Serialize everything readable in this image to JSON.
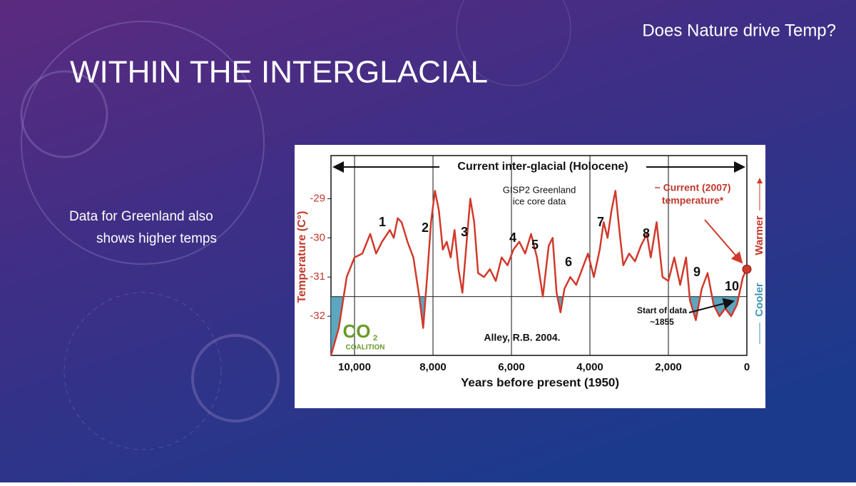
{
  "slide": {
    "header": "Does Nature drive Temp?",
    "title": "WITHIN THE INTERGLACIAL",
    "body": [
      "Data for Greenland also",
      "shows higher temps"
    ]
  },
  "chart": {
    "type": "line",
    "title": "Current inter-glacial (Holocene)",
    "x_label": "Years before present (1950)",
    "y_label": "Temperature (C°)",
    "x": [
      10600,
      10400,
      10200,
      10000,
      9800,
      9600,
      9450,
      9300,
      9100,
      9000,
      8900,
      8800,
      8650,
      8500,
      8350,
      8250,
      8150,
      8050,
      7950,
      7850,
      7750,
      7650,
      7550,
      7450,
      7350,
      7250,
      7150,
      7050,
      6950,
      6850,
      6700,
      6550,
      6400,
      6250,
      6100,
      5950,
      5800,
      5650,
      5500,
      5350,
      5200,
      5050,
      4950,
      4850,
      4750,
      4650,
      4500,
      4350,
      4200,
      4050,
      3900,
      3750,
      3650,
      3550,
      3450,
      3350,
      3250,
      3150,
      3000,
      2850,
      2700,
      2550,
      2450,
      2300,
      2150,
      2000,
      1850,
      1700,
      1550,
      1450,
      1300,
      1150,
      1000,
      850,
      700,
      550,
      400,
      250,
      100,
      0
    ],
    "values": [
      -33.0,
      -32.3,
      -31.0,
      -30.5,
      -30.4,
      -29.9,
      -30.4,
      -30.1,
      -29.8,
      -30.0,
      -29.5,
      -29.6,
      -30.1,
      -30.5,
      -31.5,
      -32.3,
      -31.0,
      -29.6,
      -28.8,
      -29.3,
      -30.3,
      -30.1,
      -30.5,
      -29.8,
      -30.8,
      -31.4,
      -30.2,
      -29.0,
      -29.6,
      -30.9,
      -31.0,
      -30.8,
      -31.1,
      -30.5,
      -30.7,
      -30.3,
      -30.1,
      -30.4,
      -29.9,
      -30.5,
      -31.5,
      -30.2,
      -30.0,
      -31.4,
      -31.9,
      -31.3,
      -31.0,
      -31.2,
      -30.8,
      -30.4,
      -31.0,
      -30.3,
      -29.6,
      -30.0,
      -29.3,
      -28.8,
      -29.8,
      -30.7,
      -30.4,
      -30.6,
      -30.2,
      -29.9,
      -30.5,
      -29.6,
      -31.0,
      -31.1,
      -30.5,
      -31.2,
      -30.5,
      -31.6,
      -32.1,
      -31.3,
      -30.9,
      -31.7,
      -32.0,
      -31.8,
      -32.0,
      -31.7,
      -31.0,
      -30.8
    ],
    "color": "#d03a2c",
    "xlim": [
      10600,
      0
    ],
    "ylim": [
      -33,
      -27.9
    ],
    "xticks": [
      {
        "value": 10000,
        "label": "10,000"
      },
      {
        "value": 8000,
        "label": "8,000"
      },
      {
        "value": 6000,
        "label": "6,000"
      },
      {
        "value": 4000,
        "label": "4,000"
      },
      {
        "value": 2000,
        "label": "2,000"
      },
      0
    ],
    "yticks": [
      -29,
      -30,
      -31,
      -32
    ],
    "grid": true,
    "reference": -31.5,
    "reference_color": "#3f96b4",
    "period_labels": [
      "1",
      "2",
      "3",
      "4",
      "5",
      "6",
      "7",
      "8",
      "9",
      "10"
    ],
    "notes": {
      "source_title": "GISP2 Greenland",
      "source_sub": "ice core data",
      "current_1": "~ Current (2007)",
      "current_2": "temperature*",
      "start_1": "Start of data",
      "start_2": "~1855",
      "citation": "Alley, R.B. 2004.",
      "cooler": "Cooler",
      "warmer": "Warmer",
      "logo": "CO",
      "logo_sub": "2",
      "logo_name": "COALITION"
    }
  }
}
